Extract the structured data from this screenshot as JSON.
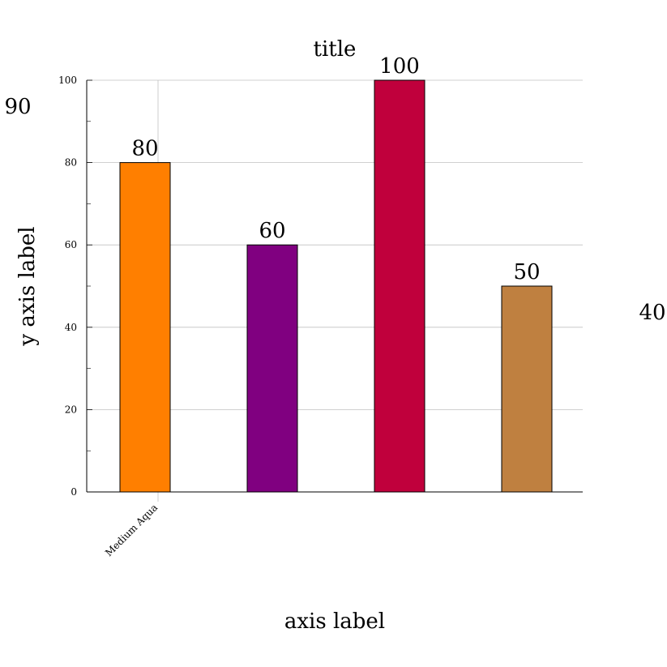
{
  "chart_data": {
    "type": "bar",
    "title": "title",
    "xlabel": "axis label",
    "ylabel": "y axis label",
    "categories": [
      "Medium Aqua",
      "",
      "",
      ""
    ],
    "values": [
      80,
      60,
      100,
      50
    ],
    "colors": [
      "#ff7f00",
      "#800080",
      "#c0003c",
      "#bf8040"
    ],
    "ylim": [
      0,
      100
    ],
    "yticks": [
      0,
      20,
      40,
      60,
      80,
      100
    ],
    "grid": true,
    "annotations": [
      "90",
      "40"
    ]
  }
}
